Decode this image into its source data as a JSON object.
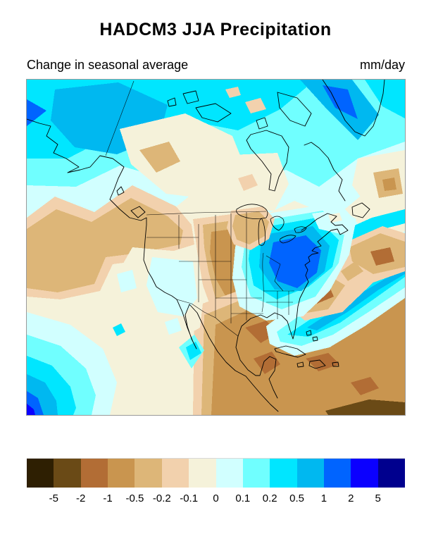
{
  "figure": {
    "title": "HADCM3 JJA Precipitation",
    "subtitle_left": "Change in seasonal average",
    "units_label": "mm/day"
  },
  "colorbar": {
    "tick_labels": [
      "-5",
      "-2",
      "-1",
      "-0.5",
      "-0.2",
      "-0.1",
      "0",
      "0.1",
      "0.2",
      "0.5",
      "1",
      "2",
      "5"
    ],
    "cell_colors": [
      "#2e1f02",
      "#6a4a16",
      "#b26d35",
      "#c9954f",
      "#ddb678",
      "#f2d1ad",
      "#f5f2da",
      "#d1ffff",
      "#70ffff",
      "#00e6ff",
      "#00b8f0",
      "#0064ff",
      "#0b00ff",
      "#00008e"
    ]
  },
  "chart_data": {
    "type": "heatmap",
    "title": "HADCM3 JJA Precipitation",
    "subtitle": "Change in seasonal average",
    "units": "mm/day",
    "region": "North America (filled-contour map with coastlines and state/province borders)",
    "levels_mm_per_day": [
      -5,
      -2,
      -1,
      -0.5,
      -0.2,
      -0.1,
      0,
      0.1,
      0.2,
      0.5,
      1,
      2,
      5
    ],
    "palette": [
      "#2e1f02",
      "#6a4a16",
      "#b26d35",
      "#c9954f",
      "#ddb678",
      "#f2d1ad",
      "#f5f2da",
      "#d1ffff",
      "#70ffff",
      "#00e6ff",
      "#00b8f0",
      "#0064ff",
      "#0b00ff",
      "#00008e"
    ],
    "features": [
      {
        "area": "Alaska and Arctic coast",
        "change_mm_per_day": "+0.2 to +1 (wetter, cyan/blue patch over interior Alaska)"
      },
      {
        "area": "Southern Greenland",
        "change_mm_per_day": "+1 to +2 (blue core)"
      },
      {
        "area": "Northern Canada / Hudson Bay / Labrador",
        "change_mm_per_day": "+0.1 to +0.5"
      },
      {
        "area": "Yukon and Northwest Territories interior",
        "change_mm_per_day": "-0.1 to -0.5 (cream to tan patches)"
      },
      {
        "area": "British Columbia and Pacific Northwest interior",
        "change_mm_per_day": "-0.2 to -0.5 (drier)"
      },
      {
        "area": "Great Plains (Dakotas to Kansas)",
        "change_mm_per_day": "-0.5 to -1 (tan/brown core)"
      },
      {
        "area": "Southeast US, Gulf of Mexico, Mexico, Caribbean",
        "change_mm_per_day": "-0.5 to -2 (widespread brown, dark brown wedge near bottom-right)"
      },
      {
        "area": "Southwest US (California, Arizona, New Mexico)",
        "change_mm_per_day": "-0.1 to +0.1 (near zero, pale patches)"
      },
      {
        "area": "Northeast US / mid-Atlantic / lower Great Lakes",
        "change_mm_per_day": "+0.5 to +2 (bright blue core over NY/PA)"
      },
      {
        "area": "Western North Atlantic diagonal band",
        "change_mm_per_day": "+0.2 to +1 with embedded -0.5 to -1 brown cells offshore"
      },
      {
        "area": "Eastern tropical Pacific (bottom-left corner)",
        "change_mm_per_day": "+1 to +5 (nested cyan to deep blue)"
      }
    ]
  }
}
